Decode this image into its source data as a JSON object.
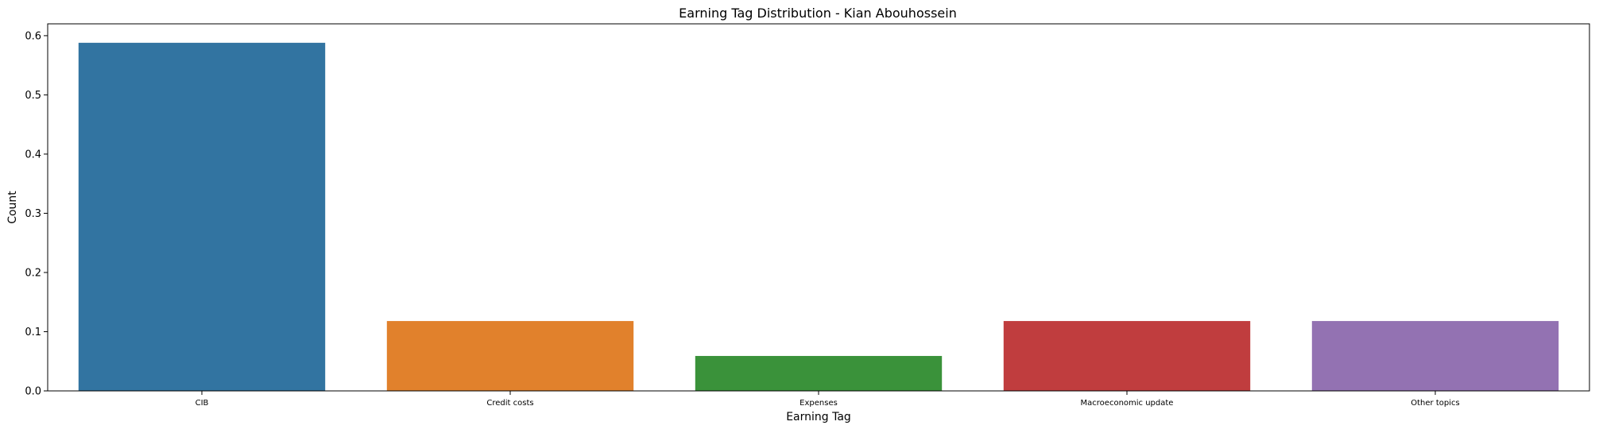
{
  "chart_data": {
    "type": "bar",
    "title": "Earning Tag Distribution - Kian Abouhossein",
    "xlabel": "Earning Tag",
    "ylabel": "Count",
    "categories": [
      "CIB",
      "Credit costs",
      "Expenses",
      "Macroeconomic update",
      "Other topics"
    ],
    "values": [
      0.588,
      0.118,
      0.059,
      0.118,
      0.118
    ],
    "colors": [
      "#3274a1",
      "#e1812c",
      "#3a923a",
      "#c03d3e",
      "#9372b2"
    ],
    "ylim": [
      0,
      0.62
    ],
    "yticks": [
      "0.0",
      "0.1",
      "0.2",
      "0.3",
      "0.4",
      "0.5",
      "0.6"
    ],
    "grid": false,
    "legend": "none"
  }
}
